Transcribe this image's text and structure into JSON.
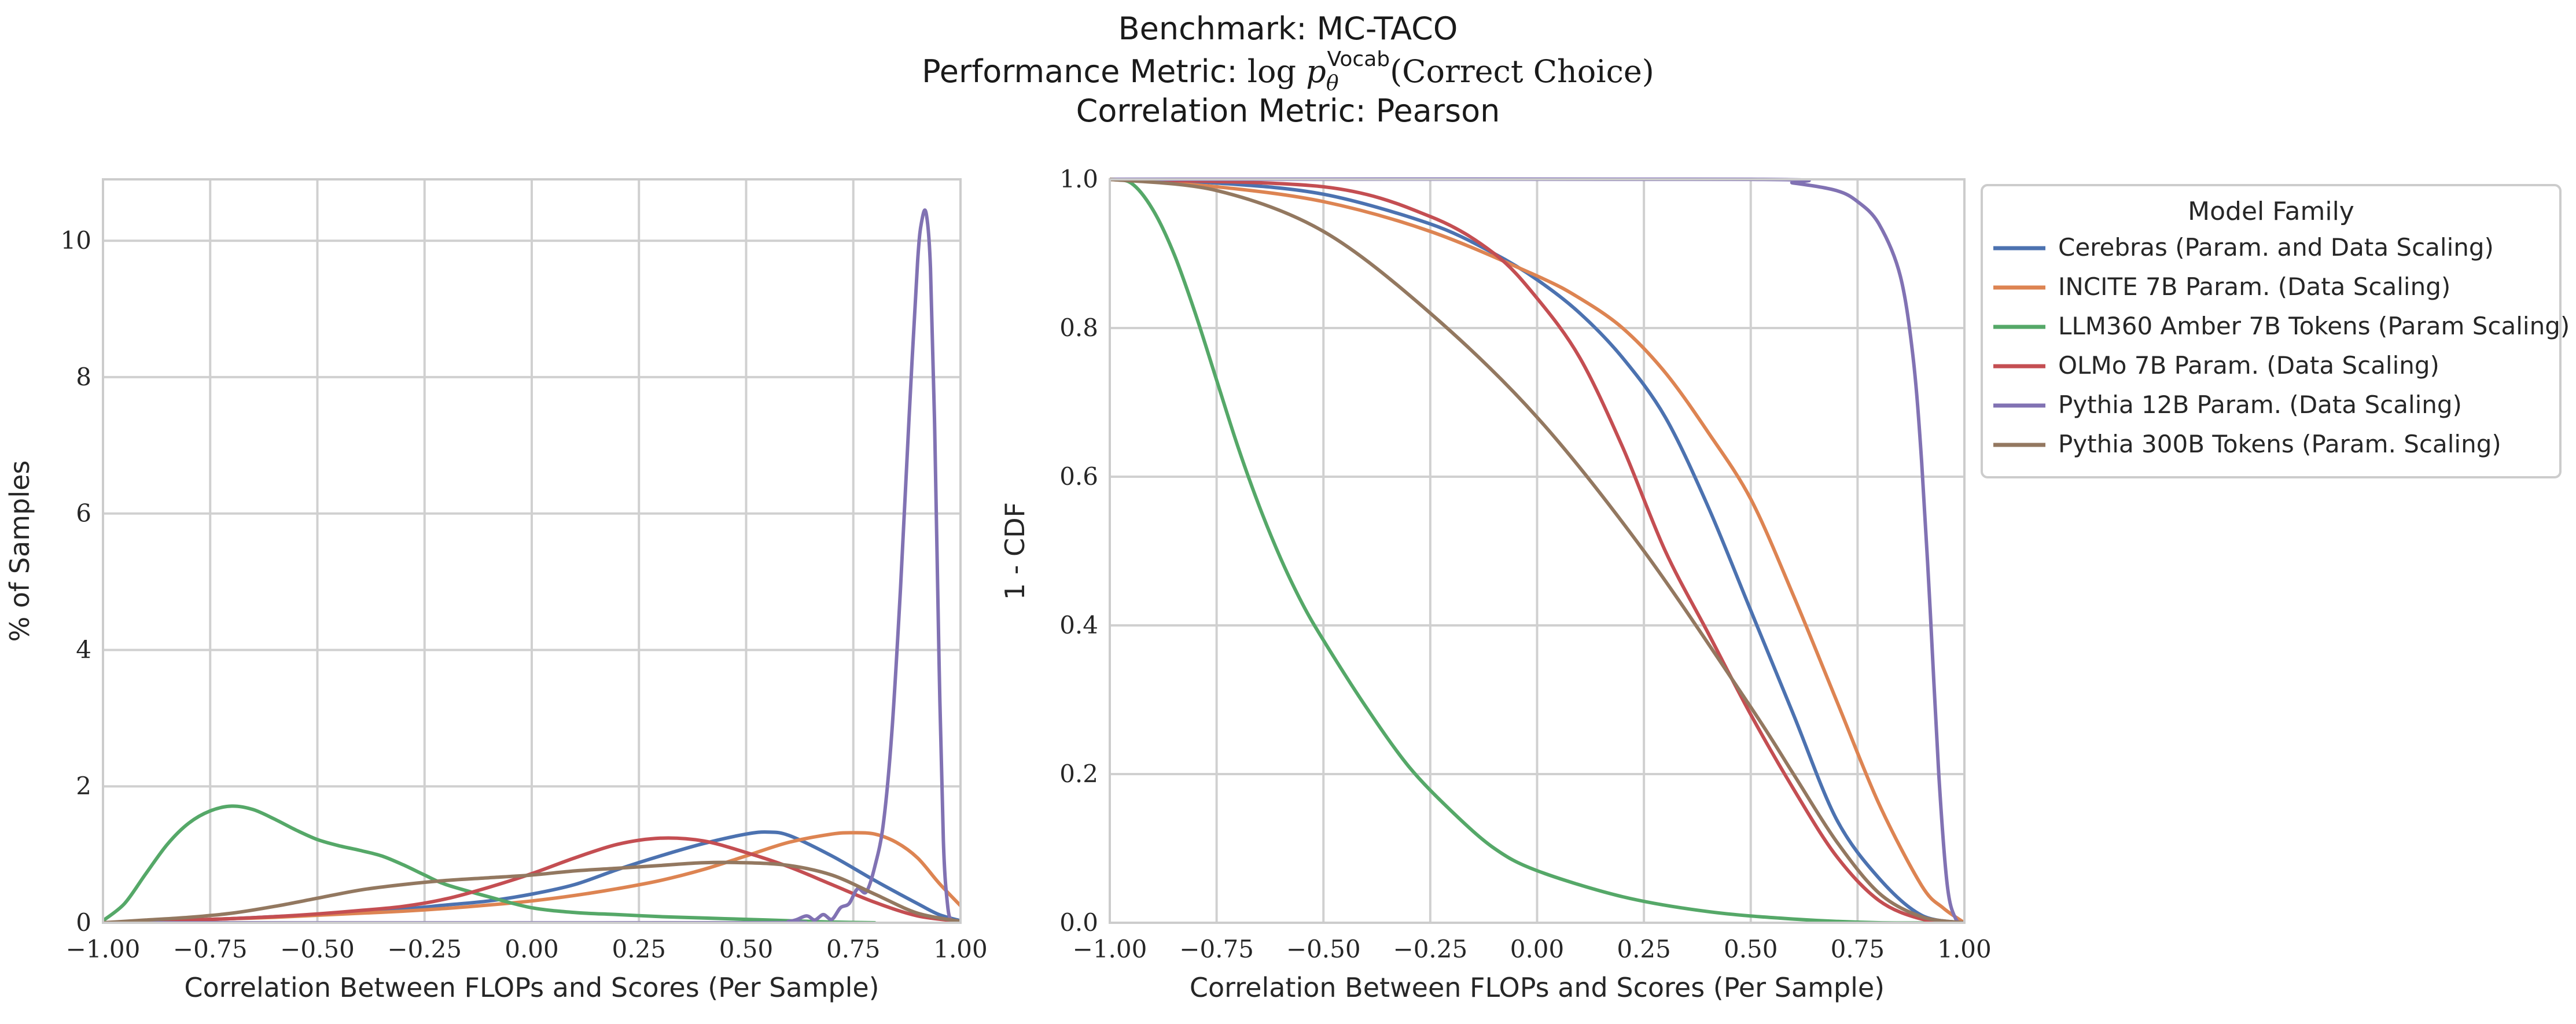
{
  "title": {
    "line1": "Benchmark: MC-TACO",
    "line2_prefix": "Performance Metric: ",
    "line2_math_log": "log",
    "line2_math_p": "p",
    "line2_math_sub": "θ",
    "line2_math_sup": "Vocab",
    "line2_suffix": "(Correct Choice)",
    "line3": "Correlation Metric: Pearson"
  },
  "chart_data": [
    {
      "type": "line",
      "subtype": "density",
      "xlabel": "Correlation Between FLOPs and Scores (Per Sample)",
      "ylabel": "% of Samples",
      "xlim": [
        -1.0,
        1.0
      ],
      "ylim": [
        0,
        10.9
      ],
      "xticks": [
        -1.0,
        -0.75,
        -0.5,
        -0.25,
        0.0,
        0.25,
        0.5,
        0.75,
        1.0
      ],
      "xtick_labels": [
        "−1.00",
        "−0.75",
        "−0.50",
        "−0.25",
        "0.00",
        "0.25",
        "0.50",
        "0.75",
        "1.00"
      ],
      "yticks": [
        0,
        2,
        4,
        6,
        8,
        10
      ],
      "ytick_labels": [
        "0",
        "2",
        "4",
        "6",
        "8",
        "10"
      ],
      "grid": true,
      "series": [
        {
          "name": "Cerebras (Param. and Data Scaling)",
          "color": "#4c72b0",
          "x": [
            -1.0,
            -0.9,
            -0.8,
            -0.7,
            -0.6,
            -0.5,
            -0.4,
            -0.3,
            -0.2,
            -0.1,
            0.0,
            0.1,
            0.2,
            0.3,
            0.4,
            0.5,
            0.55,
            0.6,
            0.7,
            0.8,
            0.9,
            0.95,
            1.0
          ],
          "y": [
            0.0,
            0.02,
            0.04,
            0.06,
            0.09,
            0.12,
            0.16,
            0.2,
            0.26,
            0.32,
            0.42,
            0.56,
            0.78,
            0.98,
            1.16,
            1.3,
            1.33,
            1.28,
            0.98,
            0.62,
            0.28,
            0.12,
            0.03
          ]
        },
        {
          "name": "INCITE 7B Param. (Data Scaling)",
          "color": "#dd8452",
          "x": [
            -1.0,
            -0.9,
            -0.8,
            -0.7,
            -0.6,
            -0.5,
            -0.4,
            -0.3,
            -0.2,
            -0.1,
            0.0,
            0.1,
            0.2,
            0.3,
            0.4,
            0.5,
            0.6,
            0.7,
            0.75,
            0.8,
            0.85,
            0.9,
            0.95,
            1.0
          ],
          "y": [
            0.0,
            0.02,
            0.04,
            0.06,
            0.08,
            0.11,
            0.14,
            0.17,
            0.21,
            0.26,
            0.32,
            0.4,
            0.5,
            0.62,
            0.78,
            0.98,
            1.18,
            1.3,
            1.32,
            1.3,
            1.18,
            0.95,
            0.58,
            0.25
          ]
        },
        {
          "name": "LLM360 Amber 7B Tokens (Param Scaling)",
          "color": "#55a868",
          "x": [
            -1.0,
            -0.95,
            -0.9,
            -0.85,
            -0.8,
            -0.75,
            -0.7,
            -0.65,
            -0.6,
            -0.55,
            -0.5,
            -0.45,
            -0.4,
            -0.35,
            -0.3,
            -0.25,
            -0.2,
            -0.1,
            0.0,
            0.1,
            0.2,
            0.3,
            0.4,
            0.5,
            0.6,
            0.7,
            0.8
          ],
          "y": [
            0.03,
            0.28,
            0.72,
            1.15,
            1.46,
            1.64,
            1.71,
            1.66,
            1.52,
            1.36,
            1.22,
            1.13,
            1.06,
            0.98,
            0.85,
            0.7,
            0.56,
            0.38,
            0.22,
            0.15,
            0.12,
            0.09,
            0.07,
            0.05,
            0.03,
            0.01,
            0.0
          ]
        },
        {
          "name": "OLMo 7B Param. (Data Scaling)",
          "color": "#c44e52",
          "x": [
            -1.0,
            -0.9,
            -0.8,
            -0.7,
            -0.6,
            -0.5,
            -0.4,
            -0.3,
            -0.2,
            -0.1,
            0.0,
            0.1,
            0.2,
            0.3,
            0.4,
            0.5,
            0.6,
            0.7,
            0.8,
            0.9,
            1.0
          ],
          "y": [
            0.0,
            0.02,
            0.04,
            0.06,
            0.09,
            0.13,
            0.18,
            0.24,
            0.35,
            0.52,
            0.72,
            0.95,
            1.15,
            1.24,
            1.2,
            1.03,
            0.82,
            0.56,
            0.3,
            0.1,
            0.02
          ]
        },
        {
          "name": "Pythia 12B Param. (Data Scaling)",
          "color": "#8172b3",
          "x": [
            -1.0,
            0.5,
            0.6,
            0.64,
            0.66,
            0.68,
            0.7,
            0.72,
            0.74,
            0.76,
            0.78,
            0.8,
            0.82,
            0.84,
            0.86,
            0.88,
            0.9,
            0.91,
            0.92,
            0.93,
            0.94,
            0.95,
            0.96,
            0.97,
            0.98,
            1.0
          ],
          "y": [
            0.0,
            0.0,
            0.02,
            0.1,
            0.04,
            0.12,
            0.05,
            0.22,
            0.28,
            0.5,
            0.45,
            0.82,
            1.45,
            2.8,
            4.9,
            7.4,
            9.7,
            10.3,
            10.4,
            9.6,
            7.2,
            3.8,
            1.2,
            0.25,
            0.03,
            0.0
          ]
        },
        {
          "name": "Pythia 300B Tokens (Param. Scaling)",
          "color": "#937860",
          "x": [
            -1.0,
            -0.9,
            -0.8,
            -0.7,
            -0.6,
            -0.5,
            -0.4,
            -0.3,
            -0.2,
            -0.1,
            0.0,
            0.1,
            0.2,
            0.3,
            0.4,
            0.5,
            0.6,
            0.7,
            0.8,
            0.9,
            1.0
          ],
          "y": [
            0.0,
            0.04,
            0.08,
            0.14,
            0.24,
            0.36,
            0.48,
            0.56,
            0.62,
            0.66,
            0.7,
            0.76,
            0.8,
            0.84,
            0.88,
            0.88,
            0.84,
            0.7,
            0.42,
            0.14,
            0.02
          ]
        }
      ]
    },
    {
      "type": "line",
      "subtype": "survival",
      "xlabel": "Correlation Between FLOPs and Scores (Per Sample)",
      "ylabel": "1 - CDF",
      "xlim": [
        -1.0,
        1.0
      ],
      "ylim": [
        0.0,
        1.0
      ],
      "xticks": [
        -1.0,
        -0.75,
        -0.5,
        -0.25,
        0.0,
        0.25,
        0.5,
        0.75,
        1.0
      ],
      "xtick_labels": [
        "−1.00",
        "−0.75",
        "−0.50",
        "−0.25",
        "0.00",
        "0.25",
        "0.50",
        "0.75",
        "1.00"
      ],
      "yticks": [
        0.0,
        0.2,
        0.4,
        0.6,
        0.8,
        1.0
      ],
      "ytick_labels": [
        "0.0",
        "0.2",
        "0.4",
        "0.6",
        "0.8",
        "1.0"
      ],
      "grid": true,
      "legend": {
        "title": "Model Family",
        "placement": "outside-right"
      },
      "series": [
        {
          "name": "Cerebras (Param. and Data Scaling)",
          "color": "#4c72b0",
          "x": [
            -1.0,
            -0.75,
            -0.5,
            -0.25,
            -0.1,
            0.0,
            0.1,
            0.2,
            0.3,
            0.4,
            0.5,
            0.6,
            0.7,
            0.8,
            0.9,
            1.0
          ],
          "y": [
            1.0,
            0.995,
            0.98,
            0.94,
            0.9,
            0.865,
            0.82,
            0.76,
            0.68,
            0.56,
            0.42,
            0.28,
            0.14,
            0.06,
            0.01,
            0.0
          ]
        },
        {
          "name": "INCITE 7B Param. (Data Scaling)",
          "color": "#dd8452",
          "x": [
            -1.0,
            -0.75,
            -0.5,
            -0.25,
            0.0,
            0.1,
            0.2,
            0.3,
            0.4,
            0.5,
            0.6,
            0.7,
            0.8,
            0.9,
            0.95,
            1.0
          ],
          "y": [
            1.0,
            0.99,
            0.97,
            0.93,
            0.87,
            0.84,
            0.8,
            0.74,
            0.66,
            0.57,
            0.44,
            0.3,
            0.16,
            0.05,
            0.02,
            0.0
          ]
        },
        {
          "name": "LLM360 Amber 7B Tokens (Param Scaling)",
          "color": "#55a868",
          "x": [
            -1.0,
            -0.95,
            -0.9,
            -0.85,
            -0.8,
            -0.75,
            -0.7,
            -0.65,
            -0.6,
            -0.55,
            -0.5,
            -0.4,
            -0.3,
            -0.2,
            -0.1,
            0.0,
            0.2,
            0.4,
            0.6,
            0.8,
            1.0
          ],
          "y": [
            1.0,
            0.995,
            0.96,
            0.9,
            0.82,
            0.73,
            0.64,
            0.56,
            0.49,
            0.43,
            0.38,
            0.29,
            0.21,
            0.15,
            0.1,
            0.07,
            0.035,
            0.015,
            0.005,
            0.0,
            0.0
          ]
        },
        {
          "name": "OLMo 7B Param. (Data Scaling)",
          "color": "#c44e52",
          "x": [
            -1.0,
            -0.5,
            -0.25,
            -0.1,
            0.0,
            0.1,
            0.2,
            0.3,
            0.4,
            0.5,
            0.6,
            0.7,
            0.8,
            0.9,
            1.0
          ],
          "y": [
            1.0,
            0.99,
            0.95,
            0.9,
            0.84,
            0.76,
            0.64,
            0.5,
            0.39,
            0.28,
            0.18,
            0.09,
            0.03,
            0.005,
            0.0
          ]
        },
        {
          "name": "Pythia 12B Param. (Data Scaling)",
          "color": "#8172b3",
          "x": [
            -1.0,
            0.5,
            0.6,
            0.7,
            0.75,
            0.8,
            0.85,
            0.88,
            0.9,
            0.92,
            0.94,
            0.96,
            0.98,
            1.0
          ],
          "y": [
            1.0,
            1.0,
            0.995,
            0.985,
            0.97,
            0.94,
            0.87,
            0.76,
            0.62,
            0.42,
            0.2,
            0.05,
            0.005,
            0.0
          ]
        },
        {
          "name": "Pythia 300B Tokens (Param. Scaling)",
          "color": "#937860",
          "x": [
            -1.0,
            -0.75,
            -0.5,
            -0.25,
            0.0,
            0.25,
            0.5,
            0.6,
            0.7,
            0.8,
            0.9,
            1.0
          ],
          "y": [
            1.0,
            0.985,
            0.93,
            0.82,
            0.68,
            0.5,
            0.29,
            0.2,
            0.11,
            0.04,
            0.008,
            0.0
          ]
        }
      ]
    }
  ]
}
